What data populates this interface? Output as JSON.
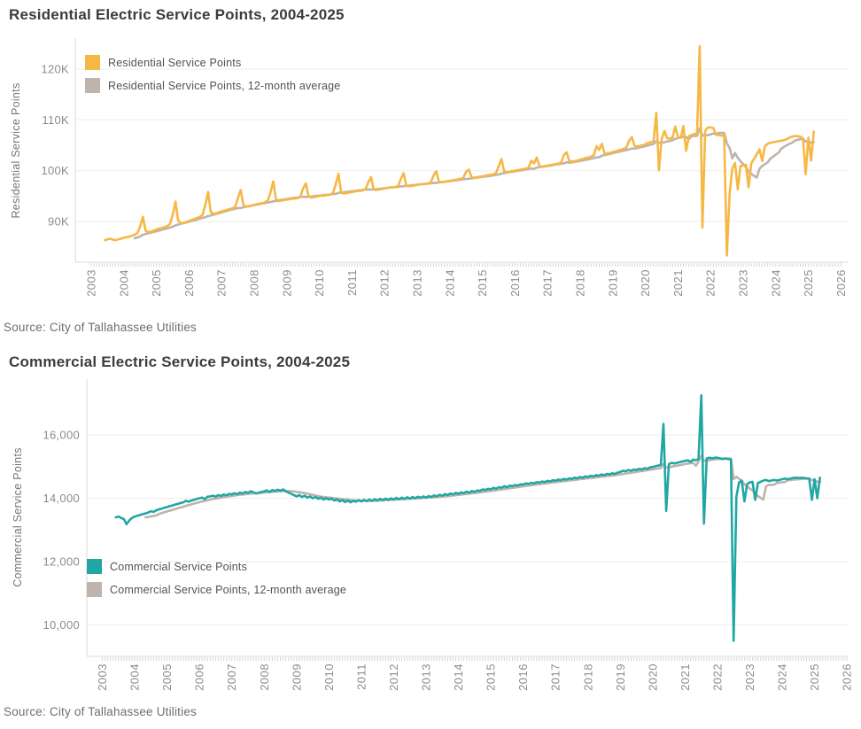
{
  "chart_data": [
    {
      "type": "line",
      "title": "Residential Electric Service Points, 2004-2025",
      "xlabel": "",
      "ylabel": "Residential Service Points",
      "source": "Source: City of Tallahassee Utilities",
      "grid": true,
      "legend_position": "top-left-inside",
      "xlim": [
        2003,
        2026
      ],
      "ylim": [
        82000,
        126000
      ],
      "x_tick_labels": [
        "2003",
        "2004",
        "2005",
        "2006",
        "2007",
        "2008",
        "2009",
        "2010",
        "2011",
        "2012",
        "2013",
        "2014",
        "2015",
        "2016",
        "2017",
        "2018",
        "2019",
        "2020",
        "2021",
        "2022",
        "2023",
        "2024",
        "2025",
        "2026"
      ],
      "y_tick_values": [
        90000,
        100000,
        110000,
        120000
      ],
      "y_tick_labels": [
        "90K",
        "100K",
        "110K",
        "120K"
      ],
      "series": [
        {
          "name": "Residential Service Points",
          "color": "#F6B845",
          "x_start": 2003.4167,
          "points_per_year": 12,
          "values": [
            86300,
            86500,
            86600,
            86400,
            86300,
            86500,
            86600,
            86800,
            86900,
            87000,
            87200,
            87400,
            87700,
            89000,
            90900,
            88200,
            87900,
            88000,
            88200,
            88400,
            88600,
            88700,
            88900,
            89100,
            89500,
            91300,
            93900,
            90200,
            89600,
            89700,
            89900,
            90100,
            90300,
            90500,
            90700,
            90900,
            91300,
            93300,
            95800,
            91900,
            91500,
            91600,
            91800,
            92000,
            92100,
            92300,
            92400,
            92600,
            92900,
            94600,
            96200,
            93300,
            92900,
            93000,
            93100,
            93300,
            93400,
            93500,
            93600,
            93800,
            94100,
            95700,
            97900,
            94400,
            94000,
            94100,
            94200,
            94300,
            94400,
            94500,
            94500,
            94600,
            94900,
            96500,
            97500,
            94900,
            94700,
            94800,
            94900,
            95000,
            95100,
            95100,
            95200,
            95300,
            95600,
            97300,
            99400,
            95700,
            95500,
            95600,
            95700,
            95800,
            95900,
            96000,
            96000,
            96100,
            96400,
            97700,
            98700,
            96300,
            96200,
            96300,
            96400,
            96500,
            96600,
            96700,
            96700,
            96800,
            97000,
            98400,
            99500,
            97000,
            96900,
            97000,
            97100,
            97200,
            97300,
            97300,
            97400,
            97500,
            97700,
            99000,
            99900,
            97800,
            97700,
            97800,
            97900,
            98000,
            98100,
            98200,
            98300,
            98400,
            98600,
            99800,
            100200,
            98700,
            98600,
            98700,
            98800,
            98900,
            99000,
            99100,
            99200,
            99300,
            99500,
            100900,
            102300,
            99900,
            99700,
            99800,
            99900,
            100000,
            100100,
            100200,
            100300,
            100400,
            100600,
            102000,
            101400,
            102600,
            100900,
            100800,
            100900,
            101000,
            101100,
            101200,
            101300,
            101400,
            101600,
            103100,
            103600,
            101900,
            101800,
            101900,
            102000,
            102200,
            102300,
            102500,
            102600,
            102800,
            103000,
            104800,
            104100,
            105300,
            103300,
            103400,
            103500,
            103700,
            103800,
            104000,
            104100,
            104300,
            104500,
            105900,
            106600,
            104900,
            104800,
            104900,
            105000,
            105200,
            105500,
            105600,
            105800,
            111400,
            100100,
            106200,
            107800,
            106400,
            106300,
            106500,
            108700,
            106600,
            106500,
            108800,
            103900,
            106800,
            107000,
            107200,
            107400,
            124500,
            88800,
            107800,
            108500,
            108500,
            108400,
            107100,
            107000,
            106900,
            106900,
            83300,
            95500,
            100400,
            101500,
            96300,
            100900,
            101000,
            101200,
            96700,
            101500,
            102300,
            103200,
            104200,
            101900,
            104800,
            105300,
            105500,
            105600,
            105700,
            105800,
            105900,
            106000,
            106200,
            106500,
            106700,
            106800,
            106800,
            106700,
            106400,
            99300,
            106500,
            102000,
            107700
          ]
        },
        {
          "name": "Residential Service Points, 12-month average",
          "color": "#BEB3AD",
          "derived": "trailing_average",
          "average_window": 12
        }
      ]
    },
    {
      "type": "line",
      "title": "Commercial Electric Service Points, 2004-2025",
      "xlabel": "",
      "ylabel": "Commercial Service Points",
      "source": "Source: City of Tallahassee Utilities",
      "grid": true,
      "legend_position": "bottom-left-inside",
      "xlim": [
        2003,
        2026
      ],
      "ylim": [
        9000,
        17800
      ],
      "x_tick_labels": [
        "2003",
        "2004",
        "2005",
        "2006",
        "2007",
        "2008",
        "2009",
        "2010",
        "2011",
        "2012",
        "2013",
        "2014",
        "2015",
        "2016",
        "2017",
        "2018",
        "2019",
        "2020",
        "2021",
        "2022",
        "2023",
        "2024",
        "2025",
        "2026"
      ],
      "y_tick_values": [
        10000,
        12000,
        14000,
        16000
      ],
      "y_tick_labels": [
        "10,000",
        "12,000",
        "14,000",
        "16,000"
      ],
      "series": [
        {
          "name": "Commercial Service Points",
          "color": "#21A7A3",
          "x_start": 2003.4167,
          "points_per_year": 12,
          "values": [
            13400,
            13420,
            13380,
            13340,
            13180,
            13300,
            13380,
            13420,
            13450,
            13470,
            13500,
            13520,
            13550,
            13590,
            13570,
            13620,
            13650,
            13670,
            13700,
            13720,
            13750,
            13770,
            13800,
            13820,
            13850,
            13870,
            13920,
            13890,
            13930,
            13950,
            13980,
            14000,
            14020,
            13970,
            14050,
            14060,
            14080,
            14050,
            14100,
            14070,
            14120,
            14090,
            14140,
            14120,
            14160,
            14130,
            14180,
            14150,
            14200,
            14170,
            14220,
            14190,
            14150,
            14180,
            14200,
            14220,
            14250,
            14200,
            14260,
            14230,
            14270,
            14240,
            14280,
            14220,
            14180,
            14140,
            14100,
            14060,
            14100,
            14040,
            14080,
            14020,
            14060,
            14000,
            14040,
            13980,
            14020,
            13960,
            14000,
            13960,
            13990,
            13930,
            13960,
            13900,
            13940,
            13880,
            13930,
            13870,
            13920,
            13890,
            13940,
            13900,
            13950,
            13910,
            13960,
            13920,
            13970,
            13930,
            13980,
            13940,
            13990,
            13950,
            14000,
            13960,
            14010,
            13970,
            14020,
            13980,
            14030,
            13990,
            14040,
            14000,
            14050,
            14010,
            14060,
            14020,
            14070,
            14040,
            14090,
            14060,
            14110,
            14080,
            14130,
            14100,
            14150,
            14120,
            14170,
            14140,
            14190,
            14160,
            14210,
            14180,
            14230,
            14200,
            14250,
            14230,
            14280,
            14260,
            14300,
            14280,
            14330,
            14300,
            14350,
            14330,
            14380,
            14350,
            14400,
            14380,
            14420,
            14400,
            14440,
            14430,
            14470,
            14450,
            14490,
            14470,
            14510,
            14490,
            14530,
            14510,
            14550,
            14530,
            14570,
            14550,
            14590,
            14570,
            14610,
            14590,
            14630,
            14610,
            14650,
            14630,
            14670,
            14650,
            14690,
            14670,
            14710,
            14690,
            14730,
            14710,
            14750,
            14730,
            14770,
            14750,
            14790,
            14770,
            14810,
            14830,
            14870,
            14850,
            14890,
            14870,
            14910,
            14890,
            14930,
            14910,
            14950,
            14930,
            14970,
            14990,
            15010,
            15030,
            15050,
            16350,
            13600,
            15080,
            15120,
            15100,
            15120,
            15140,
            15160,
            15180,
            15200,
            15150,
            15220,
            15200,
            15240,
            17250,
            13200,
            15260,
            15280,
            15260,
            15280,
            15280,
            15260,
            15240,
            15260,
            15240,
            15220,
            9500,
            14050,
            14500,
            14550,
            13900,
            14450,
            14500,
            14520,
            13950,
            14480,
            14520,
            14560,
            14580,
            14540,
            14560,
            14580,
            14560,
            14580,
            14600,
            14620,
            14600,
            14620,
            14640,
            14650,
            14640,
            14650,
            14640,
            14630,
            14620,
            13950,
            14600,
            14000,
            14650
          ]
        },
        {
          "name": "Commercial Service Points, 12-month average",
          "color": "#BEB3AD",
          "derived": "trailing_average",
          "average_window": 12
        }
      ]
    }
  ]
}
